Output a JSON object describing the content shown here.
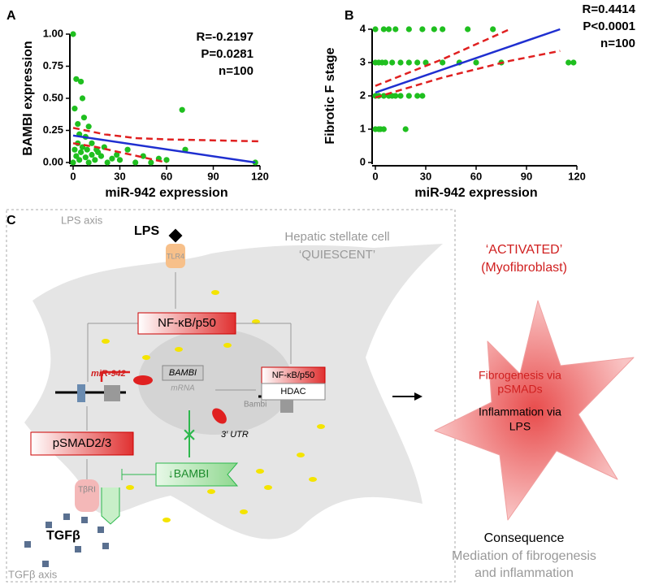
{
  "chart_data": [
    {
      "type": "scatter",
      "title": "A",
      "xlabel": "miR-942 expression",
      "ylabel": "BAMBI expression",
      "annotations": [
        "R=-0.2197",
        "P=0.0281",
        "n=100"
      ],
      "color": "#1fbf1f",
      "x": [
        0,
        0,
        1,
        1,
        2,
        2,
        3,
        3,
        4,
        4,
        5,
        5,
        6,
        6,
        7,
        8,
        8,
        9,
        10,
        10,
        12,
        12,
        14,
        15,
        16,
        18,
        20,
        22,
        25,
        28,
        30,
        35,
        40,
        45,
        50,
        55,
        60,
        70,
        72,
        117
      ],
      "values": [
        1.0,
        0.0,
        0.42,
        0.1,
        0.65,
        0.05,
        0.3,
        0.15,
        0.22,
        0.02,
        0.63,
        0.08,
        0.5,
        0.12,
        0.35,
        0.04,
        0.2,
        0.1,
        0.28,
        0.0,
        0.06,
        0.15,
        0.02,
        0.1,
        0.08,
        0.05,
        0.12,
        0.0,
        0.03,
        0.06,
        0.02,
        0.1,
        0.0,
        0.05,
        0.0,
        0.03,
        0.02,
        0.41,
        0.1,
        0.0
      ],
      "fit": {
        "x": [
          0,
          117
        ],
        "values": [
          0.21,
          0.0
        ],
        "color": "#1f2fd0",
        "dashed": false
      },
      "ci_upper": {
        "x": [
          0,
          20,
          40,
          60,
          80,
          100,
          120
        ],
        "values": [
          0.27,
          0.22,
          0.19,
          0.18,
          0.175,
          0.17,
          0.165
        ],
        "color": "#e02020",
        "dashed": true
      },
      "ci_lower": {
        "x": [
          0,
          15,
          30,
          45,
          60
        ],
        "values": [
          0.15,
          0.12,
          0.08,
          0.04,
          0.0
        ],
        "color": "#e02020",
        "dashed": true
      },
      "xlim": [
        0,
        120
      ],
      "xticks": [
        0,
        30,
        60,
        90,
        120
      ],
      "ylim": [
        0,
        1
      ],
      "yticks": [
        {
          "value": 0,
          "label": "0.00"
        },
        {
          "value": 0.25,
          "label": "0.25"
        },
        {
          "value": 0.5,
          "label": "0.50"
        },
        {
          "value": 0.75,
          "label": "0.75"
        },
        {
          "value": 1,
          "label": "1.00"
        }
      ]
    },
    {
      "type": "scatter",
      "title": "B",
      "xlabel": "miR-942 expression",
      "ylabel": "Fibrotic F stage",
      "annotations": [
        "R=0.4414",
        "P<0.0001",
        "n=100"
      ],
      "color": "#1fbf1f",
      "x": [
        0,
        2,
        3,
        5,
        18,
        0,
        2,
        5,
        8,
        10,
        12,
        15,
        20,
        25,
        28,
        0,
        2,
        4,
        6,
        10,
        15,
        20,
        25,
        30,
        40,
        50,
        60,
        75,
        115,
        118,
        0,
        5,
        8,
        12,
        20,
        28,
        35,
        40,
        55,
        70
      ],
      "values": [
        1,
        1,
        1,
        1,
        1,
        2,
        2,
        2,
        2,
        2,
        2,
        2,
        2,
        2,
        2,
        3,
        3,
        3,
        3,
        3,
        3,
        3,
        3,
        3,
        3,
        3,
        3,
        3,
        3,
        3,
        4,
        4,
        4,
        4,
        4,
        4,
        4,
        4,
        4,
        4
      ],
      "fit": {
        "x": [
          0,
          110
        ],
        "values": [
          2.1,
          4.0
        ],
        "color": "#1f2fd0",
        "dashed": false
      },
      "ci_upper": {
        "x": [
          0,
          40,
          80
        ],
        "values": [
          2.3,
          3.1,
          4.0
        ],
        "color": "#e02020",
        "dashed": true
      },
      "ci_lower": {
        "x": [
          0,
          40,
          80,
          110
        ],
        "values": [
          1.95,
          2.55,
          3.05,
          3.35
        ],
        "color": "#e02020",
        "dashed": true
      },
      "xlim": [
        0,
        120
      ],
      "xticks": [
        0,
        30,
        60,
        90,
        120
      ],
      "ylim": [
        0,
        4
      ],
      "yticks": [
        0,
        1,
        2,
        3,
        4
      ]
    }
  ],
  "diagram": {
    "panel_label": "C",
    "lps_axis": "LPS axis",
    "lps": "LPS",
    "tlr4": "TLR4",
    "cell": [
      "Hepatic stellate cell",
      "‘QUIESCENT’"
    ],
    "nfkb": "NF-κB/p50",
    "mir": "miR-942",
    "bambi_mrna": "BAMBI",
    "mrna": "mRNA",
    "utr": "3′ UTR",
    "nfkb_small": "NF-κB/p50",
    "hdac": "HDAC",
    "bambi_gene": "Bambi",
    "psmad": "pSMAD2/3",
    "bambi_down": "↓BAMBI",
    "tbri": "TβRI",
    "tgfb": "TGFβ",
    "tgfb_axis": "TGFβ axis",
    "activated": [
      "‘ACTIVATED’",
      "(Myofibroblast)"
    ],
    "fibrogenesis": [
      "Fibrogenesis via",
      "pSMADs"
    ],
    "inflammation": [
      "Inflammation via",
      "LPS"
    ],
    "consequence": "Consequence",
    "mediation": [
      "Mediation of fibrogenesis",
      "and inflammation"
    ]
  }
}
